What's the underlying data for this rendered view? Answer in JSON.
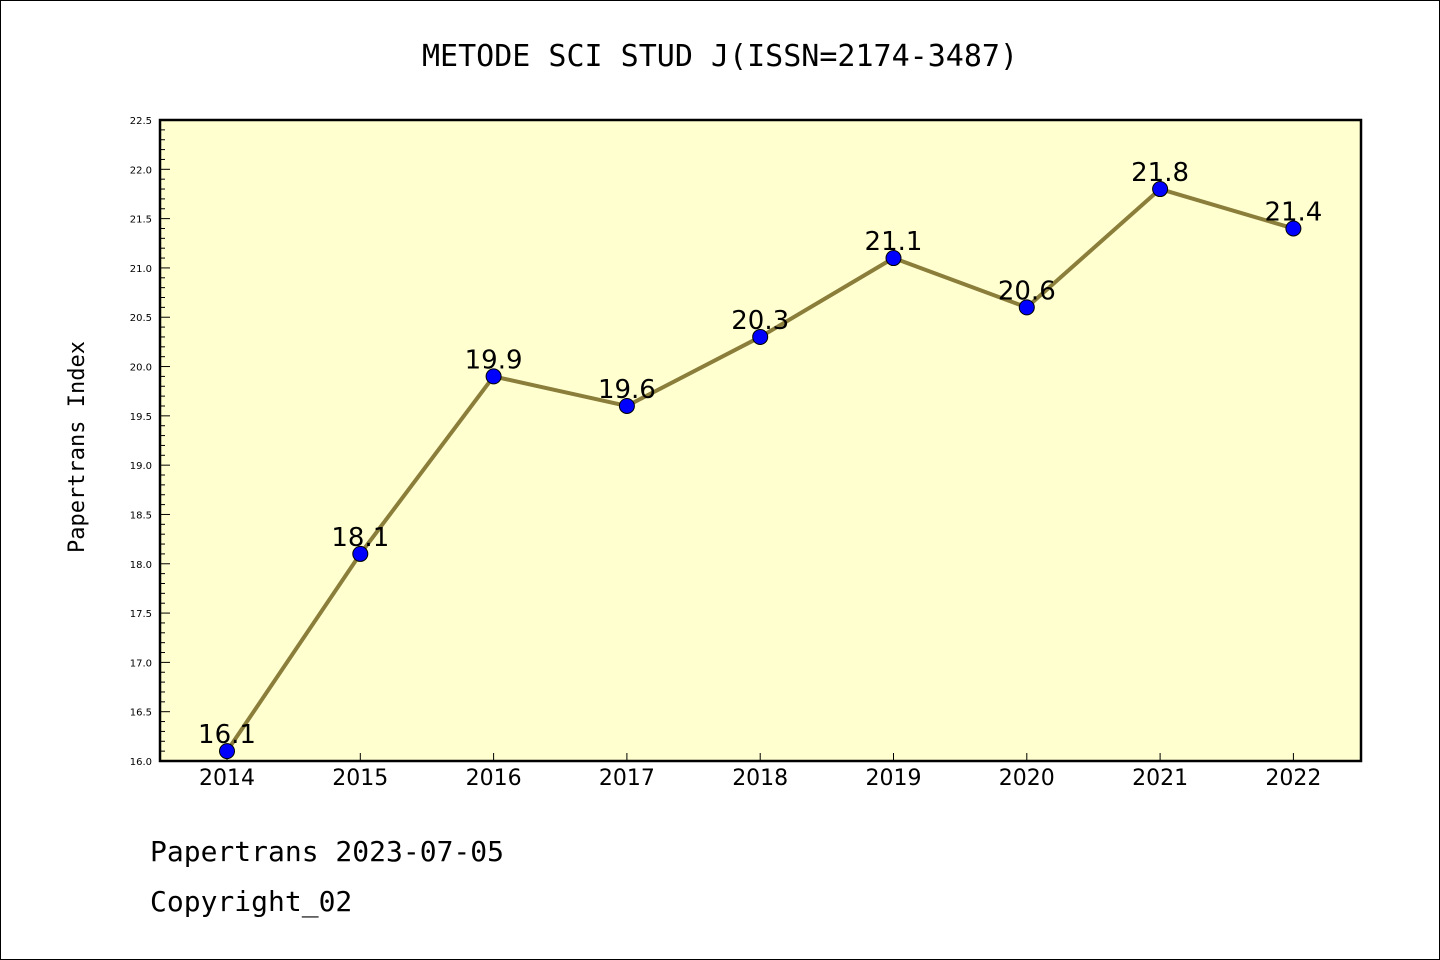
{
  "chart_data": {
    "type": "line",
    "title": "METODE SCI STUD J(ISSN=2174-3487)",
    "xlabel": "",
    "ylabel": "Papertrans Index",
    "categories": [
      "2014",
      "2015",
      "2016",
      "2017",
      "2018",
      "2019",
      "2020",
      "2021",
      "2022"
    ],
    "values": [
      16.1,
      18.1,
      19.9,
      19.6,
      20.3,
      21.1,
      20.6,
      21.8,
      21.4
    ],
    "data_labels": [
      "16.1",
      "18.1",
      "19.9",
      "19.6",
      "20.3",
      "21.1",
      "20.6",
      "21.8",
      "21.4"
    ],
    "ylim": [
      16.0,
      22.5
    ],
    "yticks": [
      "16.0",
      "16.5",
      "17.0",
      "17.5",
      "18.0",
      "18.5",
      "19.0",
      "19.5",
      "20.0",
      "20.5",
      "21.0",
      "21.5",
      "22.0",
      "22.5"
    ],
    "grid": false,
    "legend": "none",
    "colors": {
      "plot_background": "#ffffd0",
      "line": "#8b7d3a",
      "marker": "#0000ff",
      "axis": "#000000"
    }
  },
  "footer": {
    "line1": "Papertrans 2023-07-05",
    "line2": "Copyright_02"
  }
}
